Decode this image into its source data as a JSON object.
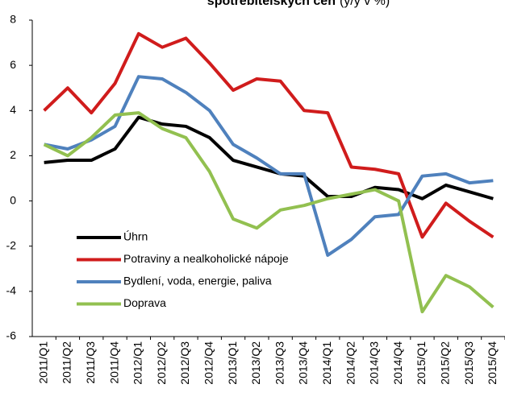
{
  "chart_data": {
    "type": "line",
    "title": "spotřebitelských cen",
    "subtitle": "(y/y v %)",
    "categories": [
      "2011/Q1",
      "2011/Q2",
      "2011/Q3",
      "2011/Q4",
      "2012/Q1",
      "2012/Q2",
      "2012/Q3",
      "2012/Q4",
      "2013/Q1",
      "2013/Q2",
      "2013/Q3",
      "2013/Q4",
      "2014/Q1",
      "2014/Q2",
      "2014/Q3",
      "2014/Q4",
      "2015/Q1",
      "2015/Q2",
      "2015/Q3",
      "2015/Q4"
    ],
    "series": [
      {
        "name": "Úhrn",
        "color": "#000000",
        "values": [
          1.7,
          1.8,
          1.8,
          2.3,
          3.7,
          3.4,
          3.3,
          2.8,
          1.8,
          1.5,
          1.2,
          1.1,
          0.2,
          0.2,
          0.6,
          0.5,
          0.1,
          0.7,
          0.4,
          0.1
        ]
      },
      {
        "name": "Potraviny a nealkoholické nápoje",
        "color": "#d01c1c",
        "values": [
          4.0,
          5.0,
          3.9,
          5.2,
          7.4,
          6.8,
          7.2,
          6.1,
          4.9,
          5.4,
          5.3,
          4.0,
          3.9,
          1.5,
          1.4,
          1.2,
          -1.6,
          -0.1,
          -0.9,
          -1.6
        ]
      },
      {
        "name": "Bydlení, voda, energie, paliva",
        "color": "#4f81bd",
        "values": [
          2.5,
          2.3,
          2.7,
          3.3,
          5.5,
          5.4,
          4.8,
          4.0,
          2.5,
          1.9,
          1.2,
          1.2,
          -2.4,
          -1.7,
          -0.7,
          -0.6,
          1.1,
          1.2,
          0.8,
          0.9
        ]
      },
      {
        "name": "Doprava",
        "color": "#92c050",
        "values": [
          2.5,
          2.0,
          2.8,
          3.8,
          3.9,
          3.2,
          2.8,
          1.3,
          -0.8,
          -1.2,
          -0.4,
          -0.2,
          0.1,
          0.3,
          0.5,
          0.0,
          -4.9,
          -3.3,
          -3.8,
          -4.7
        ]
      }
    ],
    "ylim": [
      -6,
      8
    ],
    "yticks": [
      -6,
      -4,
      -2,
      0,
      2,
      4,
      6,
      8
    ],
    "grid": false,
    "legend": "lower left"
  }
}
